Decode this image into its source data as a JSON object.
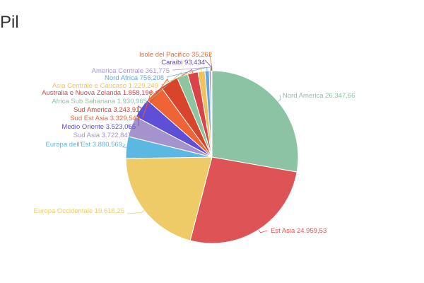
{
  "chart_data": {
    "type": "pie",
    "title": "Pil",
    "categories": [
      "Nord America",
      "Est Asia",
      "Europa Occidentale",
      "Europa dell'Est",
      "Sud Asia",
      "Medio Oriente",
      "Sud Est Asia",
      "Sud America",
      "Africa Sub Sahariana",
      "Australia e Nuova Zelanda",
      "Asia Centrale e Caucaso",
      "Nord Africa",
      "America Centrale",
      "Caraibi",
      "Isole del Pacifico"
    ],
    "values": [
      26347.66,
      24959.53,
      19618.25,
      3880.569,
      3722.847,
      3523.065,
      3329.543,
      3243.911,
      1930.965,
      1858.196,
      1229.249,
      756.208,
      361.775,
      93.434,
      35.262
    ],
    "value_labels": [
      "26.347,66",
      "24.959,53",
      "19.618,25",
      "3.880,569",
      "3.722,847",
      "3.523,065",
      "3.329,543",
      "3.243,911",
      "1.930,965",
      "1.858,196",
      "1.229,249",
      "756,208",
      "361,775",
      "93,434",
      "35,262"
    ],
    "colors": [
      "#8cc3a4",
      "#de5456",
      "#efcb67",
      "#5db7e3",
      "#a493cd",
      "#5f4fd6",
      "#ef6434",
      "#d9452b",
      "#8dc5a1",
      "#da4347",
      "#f1c25a",
      "#62a7e2",
      "#a996d4",
      "#5b45d2",
      "#f26b36"
    ],
    "legend": "none",
    "label_position": "outside"
  }
}
